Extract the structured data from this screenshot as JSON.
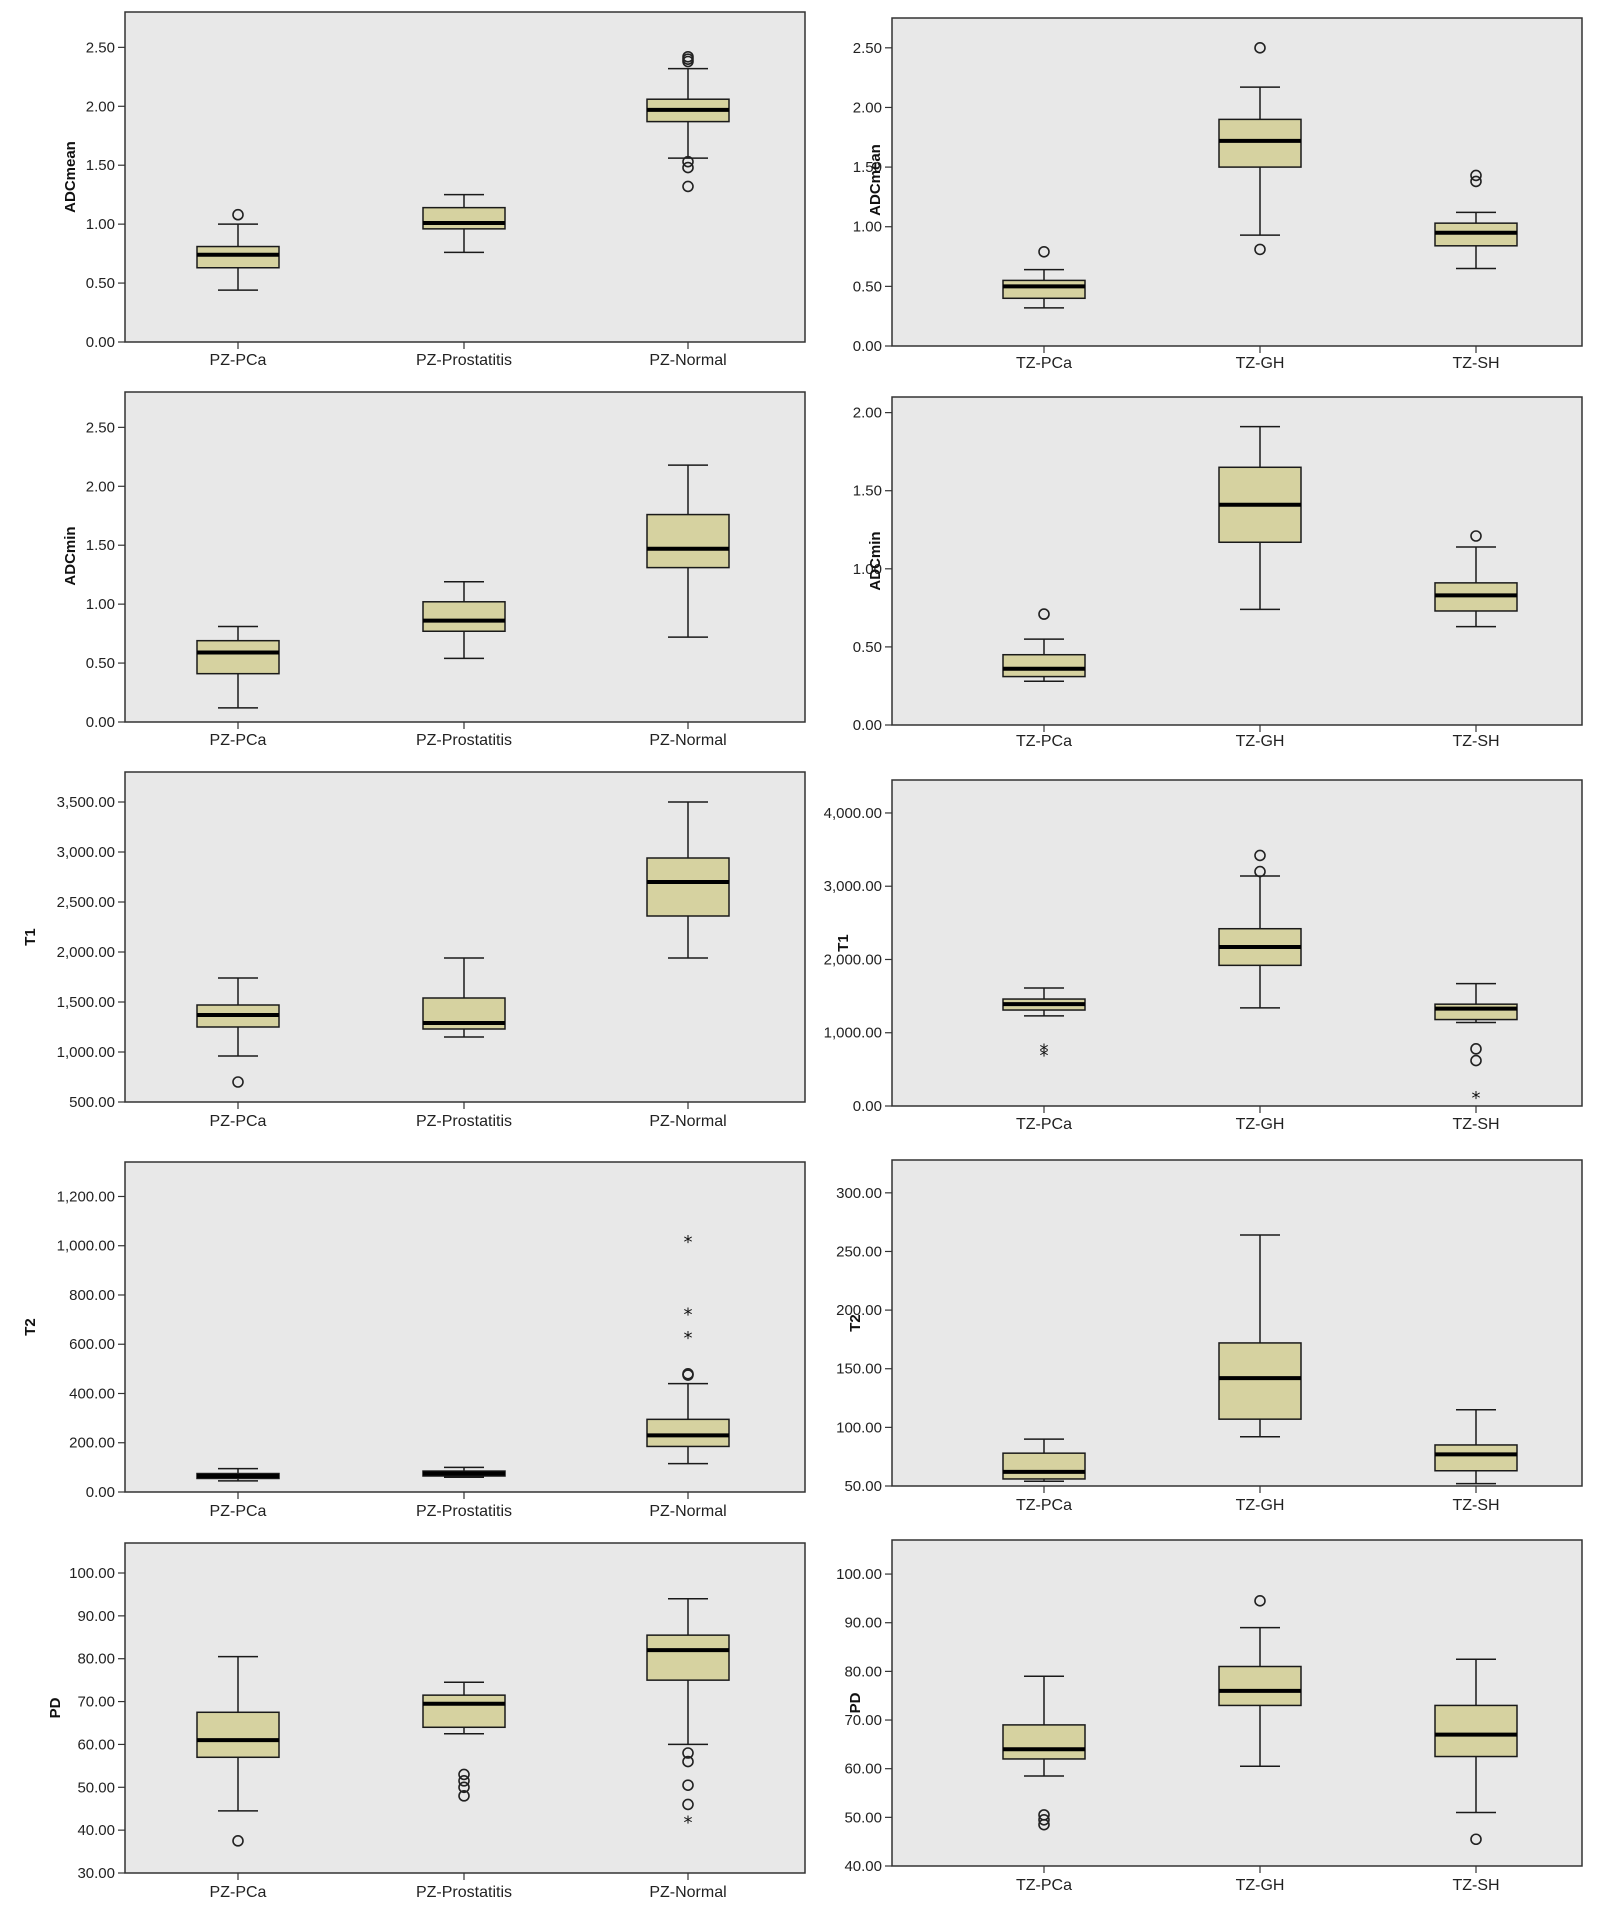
{
  "chart_data": [
    {
      "type": "boxplot",
      "ylabel": "ADCmean",
      "ylim": [
        0,
        2.8
      ],
      "yticks": [
        0,
        0.5,
        1.0,
        1.5,
        2.0,
        2.5
      ],
      "tick_labels": [
        "0.00",
        "0.50",
        "1.00",
        "1.50",
        "2.00",
        "2.50"
      ],
      "categories": [
        "PZ-PCa",
        "PZ-Prostatitis",
        "PZ-Normal"
      ],
      "boxes": [
        {
          "whisker_low": 0.44,
          "q1": 0.63,
          "median": 0.74,
          "q3": 0.81,
          "whisker_high": 1.0,
          "outliers": [
            1.08
          ],
          "extremes": []
        },
        {
          "whisker_low": 0.76,
          "q1": 0.96,
          "median": 1.01,
          "q3": 1.14,
          "whisker_high": 1.25,
          "outliers": [],
          "extremes": []
        },
        {
          "whisker_low": 1.56,
          "q1": 1.87,
          "median": 1.97,
          "q3": 2.06,
          "whisker_high": 2.32,
          "outliers": [
            2.38,
            2.4,
            2.42,
            1.53,
            1.48,
            1.32
          ],
          "extremes": []
        }
      ]
    },
    {
      "type": "boxplot",
      "ylabel": "ADCmean",
      "ylim": [
        0,
        2.75
      ],
      "yticks": [
        0,
        0.5,
        1.0,
        1.5,
        2.0,
        2.5
      ],
      "tick_labels": [
        "0.00",
        "0.50",
        "1.00",
        "1.50",
        "2.00",
        "2.50"
      ],
      "categories": [
        "TZ-PCa",
        "TZ-GH",
        "TZ-SH"
      ],
      "boxes": [
        {
          "whisker_low": 0.32,
          "q1": 0.4,
          "median": 0.5,
          "q3": 0.55,
          "whisker_high": 0.64,
          "outliers": [
            0.79
          ],
          "extremes": []
        },
        {
          "whisker_low": 0.93,
          "q1": 1.5,
          "median": 1.72,
          "q3": 1.9,
          "whisker_high": 2.17,
          "outliers": [
            2.5,
            0.81
          ],
          "extremes": []
        },
        {
          "whisker_low": 0.65,
          "q1": 0.84,
          "median": 0.95,
          "q3": 1.03,
          "whisker_high": 1.12,
          "outliers": [
            1.43,
            1.38
          ],
          "extremes": []
        }
      ]
    },
    {
      "type": "boxplot",
      "ylabel": "ADCmin",
      "ylim": [
        0,
        2.8
      ],
      "yticks": [
        0,
        0.5,
        1.0,
        1.5,
        2.0,
        2.5
      ],
      "tick_labels": [
        "0.00",
        "0.50",
        "1.00",
        "1.50",
        "2.00",
        "2.50"
      ],
      "categories": [
        "PZ-PCa",
        "PZ-Prostatitis",
        "PZ-Normal"
      ],
      "boxes": [
        {
          "whisker_low": 0.12,
          "q1": 0.41,
          "median": 0.59,
          "q3": 0.69,
          "whisker_high": 0.81,
          "outliers": [],
          "extremes": []
        },
        {
          "whisker_low": 0.54,
          "q1": 0.77,
          "median": 0.86,
          "q3": 1.02,
          "whisker_high": 1.19,
          "outliers": [],
          "extremes": []
        },
        {
          "whisker_low": 0.72,
          "q1": 1.31,
          "median": 1.47,
          "q3": 1.76,
          "whisker_high": 2.18,
          "outliers": [],
          "extremes": []
        }
      ]
    },
    {
      "type": "boxplot",
      "ylabel": "ADCmin",
      "ylim": [
        0,
        2.1
      ],
      "yticks": [
        0,
        0.5,
        1.0,
        1.5,
        2.0
      ],
      "tick_labels": [
        "0.00",
        "0.50",
        "1.00",
        "1.50",
        "2.00"
      ],
      "categories": [
        "TZ-PCa",
        "TZ-GH",
        "TZ-SH"
      ],
      "boxes": [
        {
          "whisker_low": 0.28,
          "q1": 0.31,
          "median": 0.36,
          "q3": 0.45,
          "whisker_high": 0.55,
          "outliers": [
            0.71
          ],
          "extremes": []
        },
        {
          "whisker_low": 0.74,
          "q1": 1.17,
          "median": 1.41,
          "q3": 1.65,
          "whisker_high": 1.91,
          "outliers": [],
          "extremes": []
        },
        {
          "whisker_low": 0.63,
          "q1": 0.73,
          "median": 0.83,
          "q3": 0.91,
          "whisker_high": 1.14,
          "outliers": [
            1.21
          ],
          "extremes": []
        }
      ]
    },
    {
      "type": "boxplot",
      "ylabel": "T1",
      "ylim": [
        500,
        3800
      ],
      "yticks": [
        500,
        1000,
        1500,
        2000,
        2500,
        3000,
        3500
      ],
      "tick_labels": [
        "500.00",
        "1,000.00",
        "1,500.00",
        "2,000.00",
        "2,500.00",
        "3,000.00",
        "3,500.00"
      ],
      "categories": [
        "PZ-PCa",
        "PZ-Prostatitis",
        "PZ-Normal"
      ],
      "boxes": [
        {
          "whisker_low": 960,
          "q1": 1250,
          "median": 1370,
          "q3": 1470,
          "whisker_high": 1740,
          "outliers": [
            700
          ],
          "extremes": []
        },
        {
          "whisker_low": 1150,
          "q1": 1230,
          "median": 1290,
          "q3": 1540,
          "whisker_high": 1940,
          "outliers": [],
          "extremes": []
        },
        {
          "whisker_low": 1940,
          "q1": 2360,
          "median": 2700,
          "q3": 2940,
          "whisker_high": 3500,
          "outliers": [],
          "extremes": []
        }
      ]
    },
    {
      "type": "boxplot",
      "ylabel": "T1",
      "ylim": [
        0,
        4450
      ],
      "yticks": [
        0,
        1000,
        2000,
        3000,
        4000
      ],
      "tick_labels": [
        "0.00",
        "1,000.00",
        "2,000.00",
        "3,000.00",
        "4,000.00"
      ],
      "categories": [
        "TZ-PCa",
        "TZ-GH",
        "TZ-SH"
      ],
      "boxes": [
        {
          "whisker_low": 1230,
          "q1": 1310,
          "median": 1390,
          "q3": 1460,
          "whisker_high": 1610,
          "outliers": [],
          "extremes": [
            770,
            700
          ]
        },
        {
          "whisker_low": 1340,
          "q1": 1920,
          "median": 2170,
          "q3": 2420,
          "whisker_high": 3140,
          "outliers": [
            3200,
            3420
          ],
          "extremes": []
        },
        {
          "whisker_low": 1140,
          "q1": 1180,
          "median": 1330,
          "q3": 1390,
          "whisker_high": 1670,
          "outliers": [
            780,
            620
          ],
          "extremes": [
            120
          ]
        }
      ]
    },
    {
      "type": "boxplot",
      "ylabel": "T2",
      "ylim": [
        0,
        1340
      ],
      "yticks": [
        0,
        200,
        400,
        600,
        800,
        1000,
        1200
      ],
      "tick_labels": [
        "0.00",
        "200.00",
        "400.00",
        "600.00",
        "800.00",
        "1,000.00",
        "1,200.00"
      ],
      "categories": [
        "PZ-PCa",
        "PZ-Prostatitis",
        "PZ-Normal"
      ],
      "boxes": [
        {
          "whisker_low": 45,
          "q1": 55,
          "median": 65,
          "q3": 75,
          "whisker_high": 95,
          "outliers": [],
          "extremes": []
        },
        {
          "whisker_low": 60,
          "q1": 65,
          "median": 75,
          "q3": 85,
          "whisker_high": 100,
          "outliers": [],
          "extremes": []
        },
        {
          "whisker_low": 115,
          "q1": 185,
          "median": 230,
          "q3": 295,
          "whisker_high": 440,
          "outliers": [
            475,
            480
          ],
          "extremes": [
            630,
            725,
            1020
          ]
        }
      ]
    },
    {
      "type": "boxplot",
      "ylabel": "T2",
      "ylim": [
        50,
        328
      ],
      "yticks": [
        50,
        100,
        150,
        200,
        250,
        300
      ],
      "tick_labels": [
        "50.00",
        "100.00",
        "150.00",
        "200.00",
        "250.00",
        "300.00"
      ],
      "categories": [
        "TZ-PCa",
        "TZ-GH",
        "TZ-SH"
      ],
      "boxes": [
        {
          "whisker_low": 54,
          "q1": 56,
          "median": 62,
          "q3": 78,
          "whisker_high": 90,
          "outliers": [],
          "extremes": []
        },
        {
          "whisker_low": 92,
          "q1": 107,
          "median": 142,
          "q3": 172,
          "whisker_high": 264,
          "outliers": [],
          "extremes": []
        },
        {
          "whisker_low": 52,
          "q1": 63,
          "median": 77,
          "q3": 85,
          "whisker_high": 115,
          "outliers": [],
          "extremes": []
        }
      ]
    },
    {
      "type": "boxplot",
      "ylabel": "PD",
      "ylim": [
        30,
        107
      ],
      "yticks": [
        30,
        40,
        50,
        60,
        70,
        80,
        90,
        100
      ],
      "tick_labels": [
        "30.00",
        "40.00",
        "50.00",
        "60.00",
        "70.00",
        "80.00",
        "90.00",
        "100.00"
      ],
      "categories": [
        "PZ-PCa",
        "PZ-Prostatitis",
        "PZ-Normal"
      ],
      "boxes": [
        {
          "whisker_low": 44.5,
          "q1": 57,
          "median": 61,
          "q3": 67.5,
          "whisker_high": 80.5,
          "outliers": [
            37.5
          ],
          "extremes": []
        },
        {
          "whisker_low": 62.5,
          "q1": 64,
          "median": 69.5,
          "q3": 71.5,
          "whisker_high": 74.5,
          "outliers": [
            53,
            51.5,
            50,
            48
          ],
          "extremes": []
        },
        {
          "whisker_low": 60,
          "q1": 75,
          "median": 82,
          "q3": 85.5,
          "whisker_high": 94,
          "outliers": [
            58,
            56,
            50.5,
            46
          ],
          "extremes": [
            42
          ]
        }
      ]
    },
    {
      "type": "boxplot",
      "ylabel": "PD",
      "ylim": [
        40,
        107
      ],
      "yticks": [
        40,
        50,
        60,
        70,
        80,
        90,
        100
      ],
      "tick_labels": [
        "40.00",
        "50.00",
        "60.00",
        "70.00",
        "80.00",
        "90.00",
        "100.00"
      ],
      "categories": [
        "TZ-PCa",
        "TZ-GH",
        "TZ-SH"
      ],
      "boxes": [
        {
          "whisker_low": 58.5,
          "q1": 62,
          "median": 64,
          "q3": 69,
          "whisker_high": 79,
          "outliers": [
            50.5,
            49.5,
            48.5
          ],
          "extremes": []
        },
        {
          "whisker_low": 60.5,
          "q1": 73,
          "median": 76,
          "q3": 81,
          "whisker_high": 89,
          "outliers": [
            94.5
          ],
          "extremes": []
        },
        {
          "whisker_low": 51,
          "q1": 62.5,
          "median": 67,
          "q3": 73,
          "whisker_high": 82.5,
          "outliers": [
            45.5
          ],
          "extremes": []
        }
      ]
    }
  ]
}
